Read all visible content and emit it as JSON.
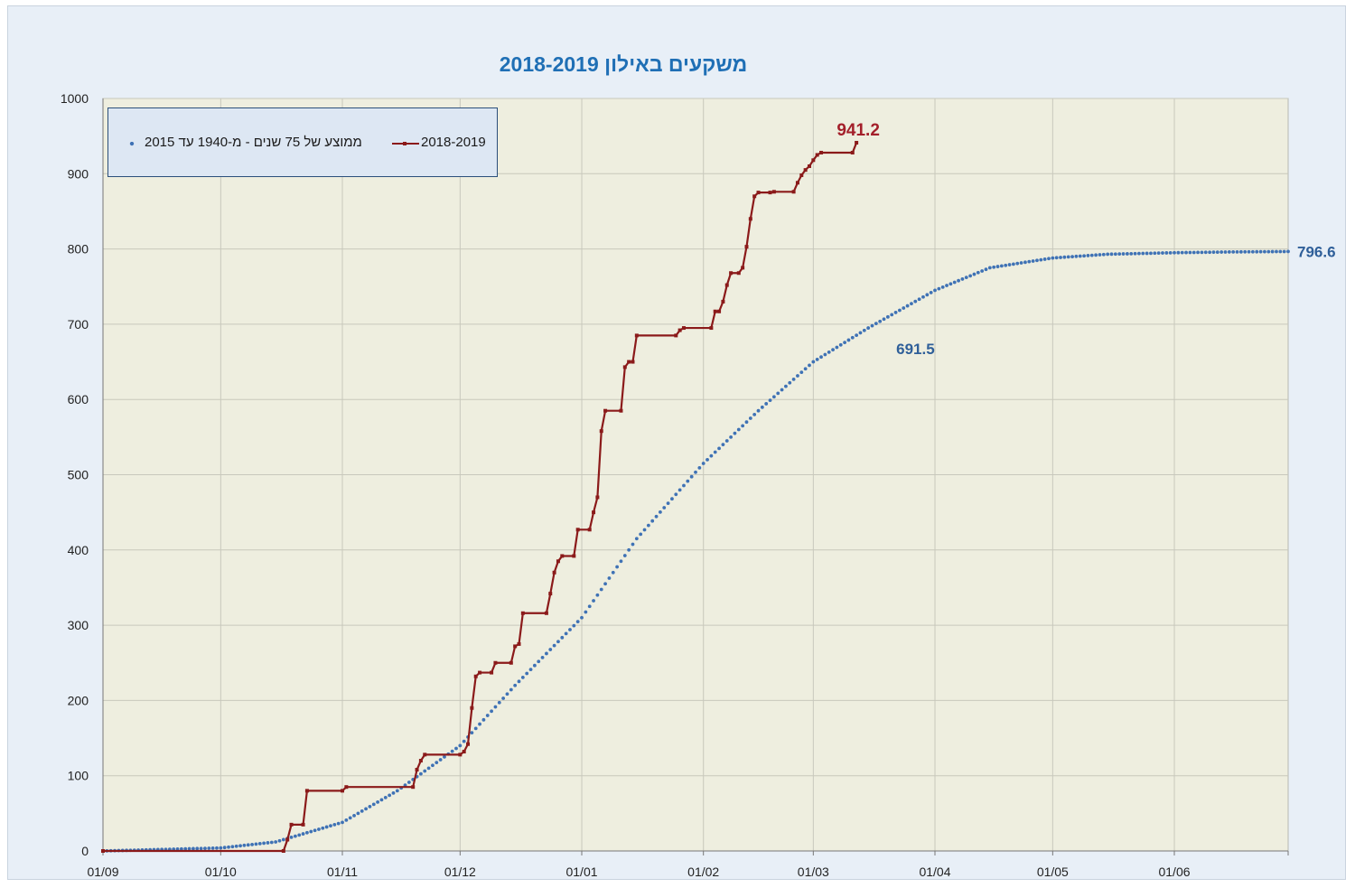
{
  "chart_data": {
    "type": "line",
    "title": "משקעים באילון 2018-2019",
    "xlabel": "",
    "ylabel": "",
    "ylim": [
      0,
      1000
    ],
    "yticks": [
      0,
      100,
      200,
      300,
      400,
      500,
      600,
      700,
      800,
      900,
      1000
    ],
    "x_range": [
      "2018-09-01",
      "2019-06-30"
    ],
    "x_ticks": [
      {
        "date": "2018-09-01",
        "label": "01/09"
      },
      {
        "date": "2018-10-01",
        "label": "01/10"
      },
      {
        "date": "2018-11-01",
        "label": "01/11"
      },
      {
        "date": "2018-12-01",
        "label": "01/12"
      },
      {
        "date": "2019-01-01",
        "label": "01/01"
      },
      {
        "date": "2019-02-01",
        "label": "01/02"
      },
      {
        "date": "2019-03-01",
        "label": "01/03"
      },
      {
        "date": "2019-04-01",
        "label": "01/04"
      },
      {
        "date": "2019-05-01",
        "label": "01/05"
      },
      {
        "date": "2019-06-01",
        "label": "01/06"
      }
    ],
    "grid": true,
    "legend": "top-left",
    "series": [
      {
        "name": "2018-2019",
        "color": "#8b1a1a",
        "style": "step-line-square-markers",
        "points": [
          [
            "2018-09-01",
            0
          ],
          [
            "2018-10-17",
            0
          ],
          [
            "2018-10-18",
            15
          ],
          [
            "2018-10-19",
            35
          ],
          [
            "2018-10-22",
            35
          ],
          [
            "2018-10-23",
            80
          ],
          [
            "2018-11-01",
            80
          ],
          [
            "2018-11-02",
            85
          ],
          [
            "2018-11-19",
            85
          ],
          [
            "2018-11-20",
            108
          ],
          [
            "2018-11-21",
            120
          ],
          [
            "2018-11-22",
            128
          ],
          [
            "2018-12-01",
            128
          ],
          [
            "2018-12-02",
            132
          ],
          [
            "2018-12-03",
            142
          ],
          [
            "2018-12-04",
            190
          ],
          [
            "2018-12-05",
            232
          ],
          [
            "2018-12-06",
            237
          ],
          [
            "2018-12-09",
            237
          ],
          [
            "2018-12-10",
            250
          ],
          [
            "2018-12-14",
            250
          ],
          [
            "2018-12-15",
            272
          ],
          [
            "2018-12-16",
            275
          ],
          [
            "2018-12-17",
            316
          ],
          [
            "2018-12-23",
            316
          ],
          [
            "2018-12-24",
            342
          ],
          [
            "2018-12-25",
            370
          ],
          [
            "2018-12-26",
            385
          ],
          [
            "2018-12-27",
            392
          ],
          [
            "2018-12-30",
            392
          ],
          [
            "2018-12-31",
            427
          ],
          [
            "2019-01-03",
            427
          ],
          [
            "2019-01-04",
            450
          ],
          [
            "2019-01-05",
            470
          ],
          [
            "2019-01-06",
            558
          ],
          [
            "2019-01-07",
            585
          ],
          [
            "2019-01-11",
            585
          ],
          [
            "2019-01-12",
            643
          ],
          [
            "2019-01-13",
            650
          ],
          [
            "2019-01-14",
            650
          ],
          [
            "2019-01-15",
            685
          ],
          [
            "2019-01-25",
            685
          ],
          [
            "2019-01-26",
            692
          ],
          [
            "2019-01-27",
            695
          ],
          [
            "2019-02-03",
            695
          ],
          [
            "2019-02-04",
            717
          ],
          [
            "2019-02-05",
            717
          ],
          [
            "2019-02-06",
            730
          ],
          [
            "2019-02-07",
            752
          ],
          [
            "2019-02-08",
            768
          ],
          [
            "2019-02-10",
            768
          ],
          [
            "2019-02-11",
            775
          ],
          [
            "2019-02-12",
            803
          ],
          [
            "2019-02-13",
            840
          ],
          [
            "2019-02-14",
            870
          ],
          [
            "2019-02-15",
            875
          ],
          [
            "2019-02-18",
            875
          ],
          [
            "2019-02-19",
            876
          ],
          [
            "2019-02-24",
            876
          ],
          [
            "2019-02-25",
            888
          ],
          [
            "2019-02-26",
            898
          ],
          [
            "2019-02-27",
            905
          ],
          [
            "2019-02-28",
            910
          ],
          [
            "2019-03-01",
            918
          ],
          [
            "2019-03-02",
            925
          ],
          [
            "2019-03-03",
            928
          ],
          [
            "2019-03-11",
            928
          ],
          [
            "2019-03-12",
            941.2
          ]
        ],
        "end_label": "941.2"
      },
      {
        "name": "ממוצע של 75 שנים - מ-1940 עד 2015",
        "color": "#3f72b5",
        "style": "dotted-markers",
        "points": [
          [
            "2018-09-01",
            0
          ],
          [
            "2018-10-01",
            4
          ],
          [
            "2018-10-15",
            12
          ],
          [
            "2018-11-01",
            38
          ],
          [
            "2018-11-15",
            80
          ],
          [
            "2018-12-01",
            140
          ],
          [
            "2018-12-15",
            220
          ],
          [
            "2019-01-01",
            310
          ],
          [
            "2019-01-15",
            415
          ],
          [
            "2019-02-01",
            515
          ],
          [
            "2019-02-15",
            585
          ],
          [
            "2019-03-01",
            650
          ],
          [
            "2019-03-15",
            695
          ],
          [
            "2019-04-01",
            745
          ],
          [
            "2019-04-15",
            775
          ],
          [
            "2019-05-01",
            788
          ],
          [
            "2019-05-15",
            793
          ],
          [
            "2019-06-01",
            795
          ],
          [
            "2019-06-15",
            796
          ],
          [
            "2019-06-30",
            796.6
          ]
        ],
        "labels": [
          {
            "date": "2019-03-12",
            "value": 691.5,
            "text": "691.5"
          },
          {
            "date": "2019-06-30",
            "value": 796.6,
            "text": "796.6"
          }
        ]
      }
    ]
  }
}
